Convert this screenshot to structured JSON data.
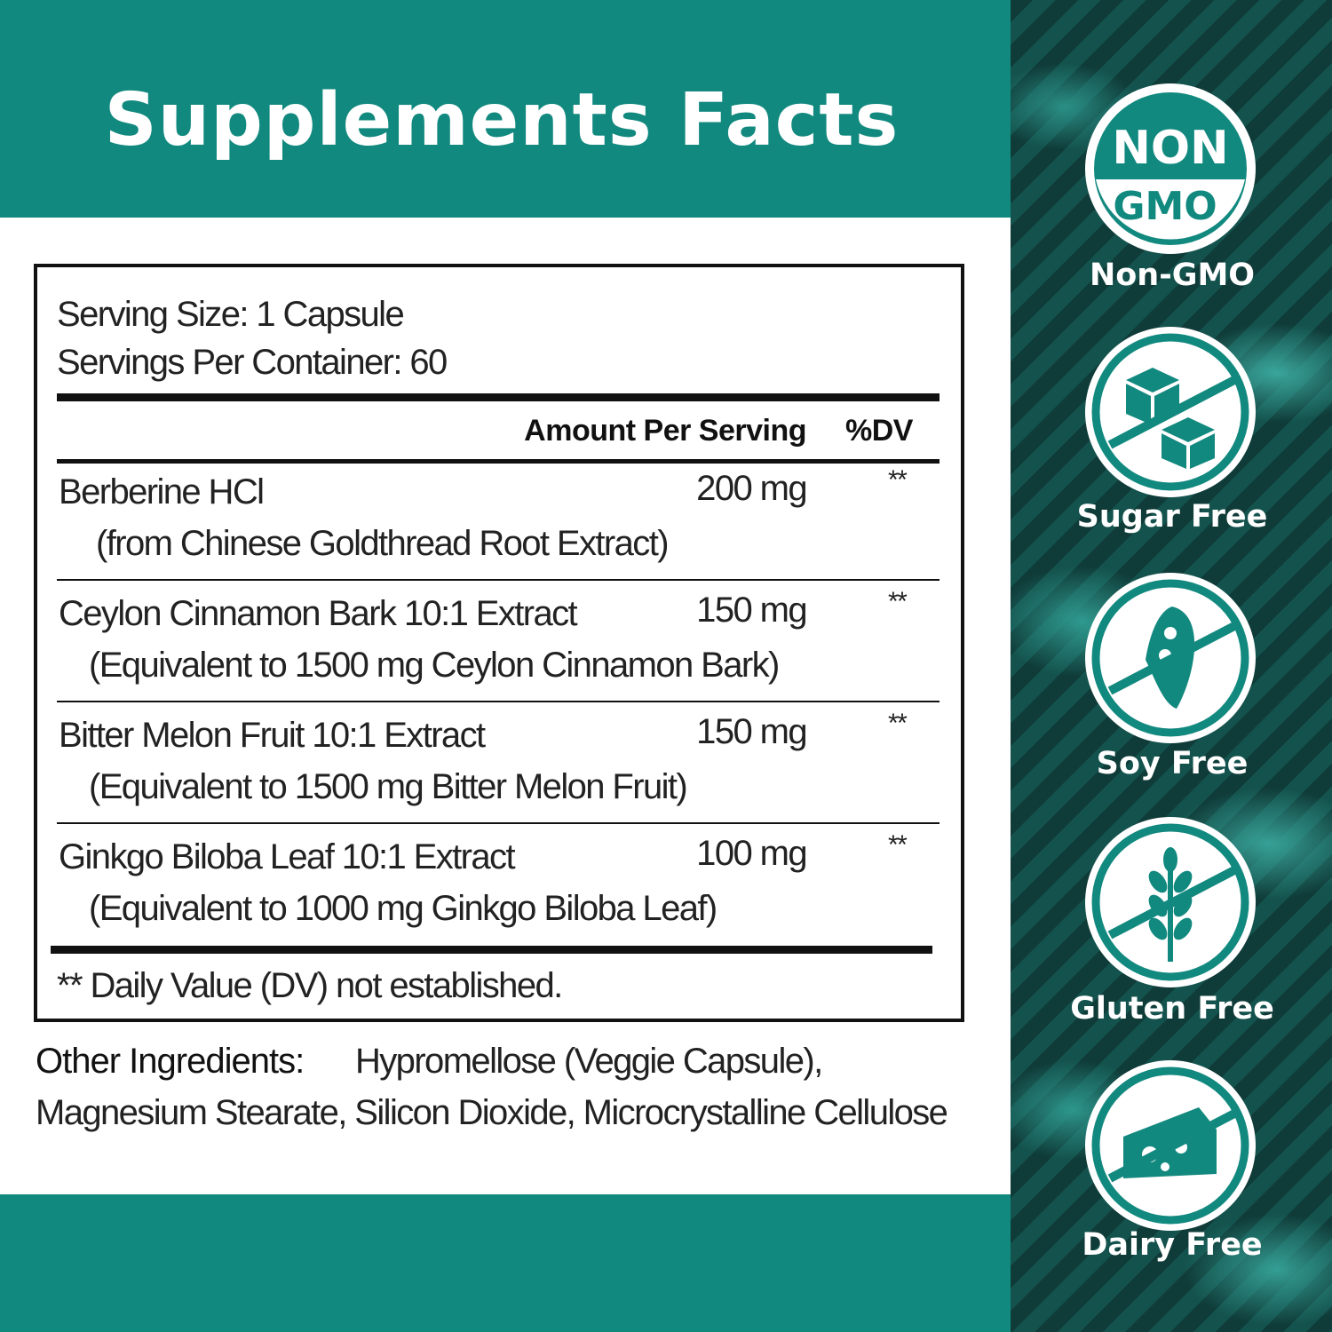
{
  "header": {
    "title": "Supplements Facts"
  },
  "facts": {
    "serving_size": "Serving Size:  1 Capsule",
    "servings_per_container": "Servings Per Container: 60",
    "col_amount": "Amount Per Serving",
    "col_dv": "%DV",
    "rows": [
      {
        "name": "Berberine HCl",
        "sub": "(from Chinese Goldthread Root Extract)",
        "amount": "200 mg",
        "dv": "**"
      },
      {
        "name": "Ceylon Cinnamon Bark 10:1 Extract",
        "sub": "(Equivalent to 1500 mg Ceylon Cinnamon Bark)",
        "amount": "150 mg",
        "dv": "**"
      },
      {
        "name": "Bitter Melon Fruit 10:1 Extract",
        "sub": "(Equivalent to 1500 mg Bitter Melon Fruit)",
        "amount": "150 mg",
        "dv": "**"
      },
      {
        "name": "Ginkgo Biloba Leaf 10:1 Extract",
        "sub": "(Equivalent to 1000 mg Ginkgo Biloba Leaf)",
        "amount": "100 mg",
        "dv": "**"
      }
    ],
    "footnote": "** Daily Value (DV) not established."
  },
  "other": {
    "label": "Other Ingredients:",
    "line1": "Hypromellose (Veggie Capsule),",
    "line2": "Magnesium Stearate, Silicon Dioxide, Microcrystalline Cellulose"
  },
  "badges": [
    {
      "label": "Non-GMO",
      "icon": "non-gmo-seal",
      "top_text": "NON",
      "bottom_text": "GMO"
    },
    {
      "label": "Sugar Free",
      "icon": "sugar-cubes-crossed"
    },
    {
      "label": "Soy Free",
      "icon": "soybean-crossed"
    },
    {
      "label": "Gluten Free",
      "icon": "wheat-crossed"
    },
    {
      "label": "Dairy Free",
      "icon": "cheese-crossed"
    }
  ],
  "colors": {
    "teal": "#12897f",
    "dark_panel": "#0f3b38"
  }
}
